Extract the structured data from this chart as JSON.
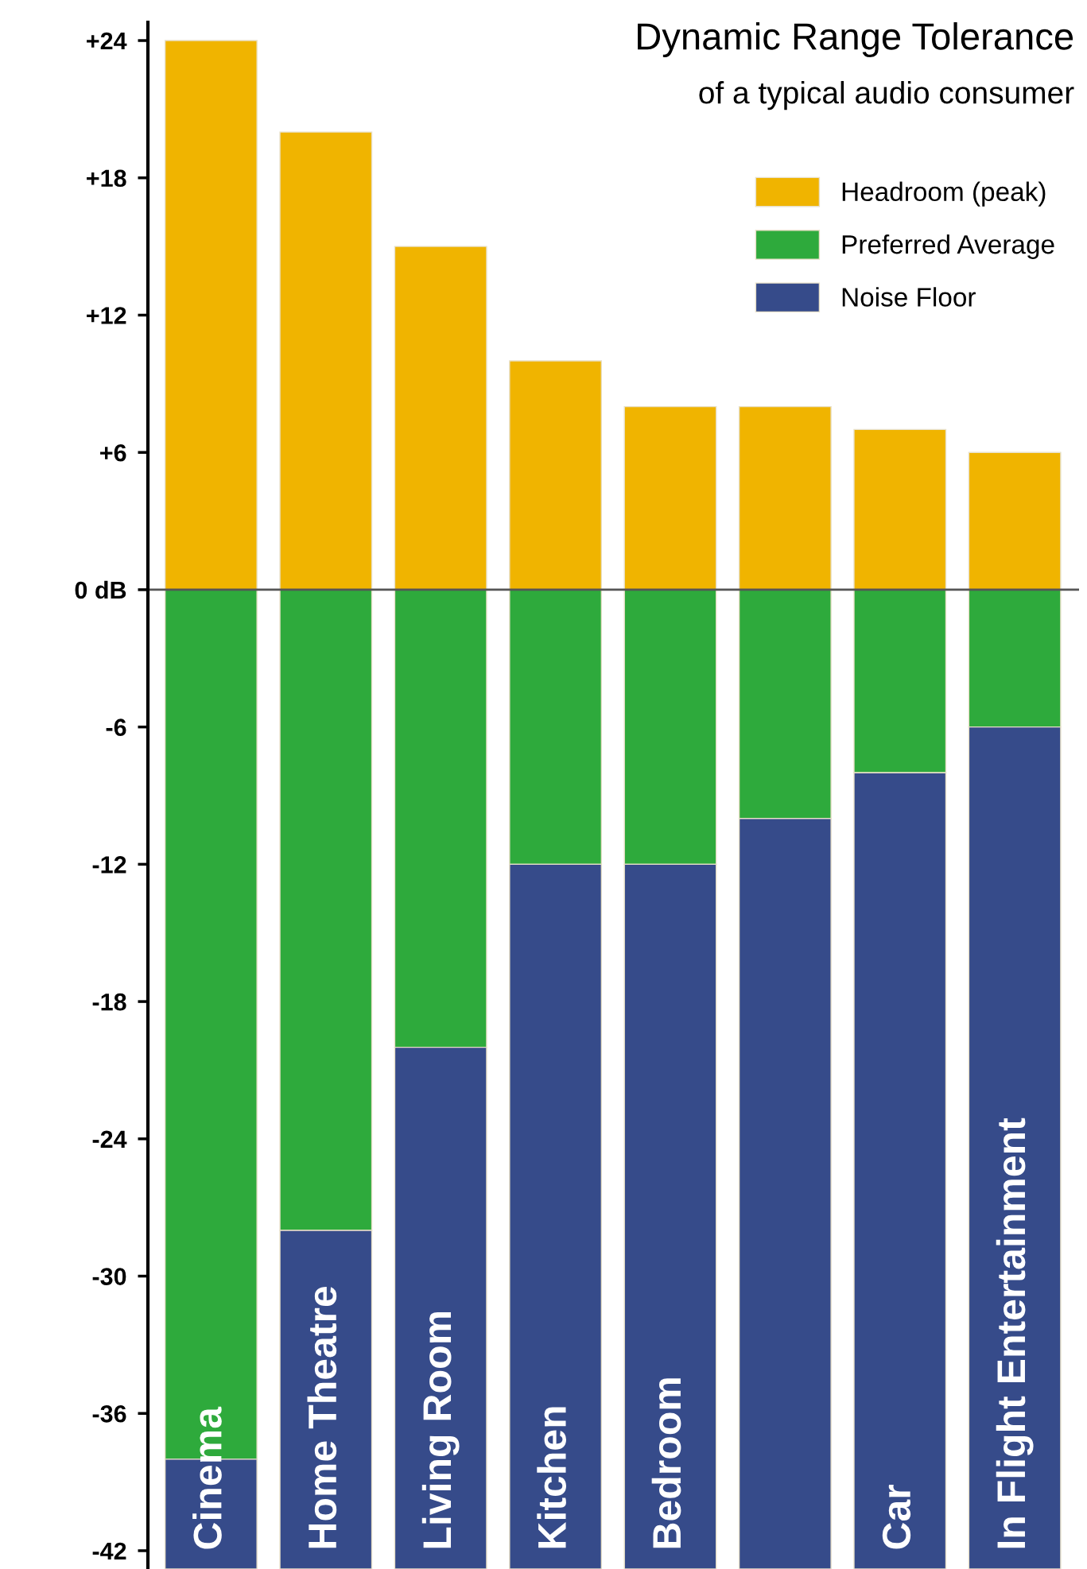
{
  "chart_data": {
    "type": "bar",
    "title": "Dynamic Range Tolerance",
    "subtitle": "of a typical audio consumer",
    "categories": [
      "Cinema",
      "Home Theatre",
      "Living Room",
      "Kitchen",
      "Bedroom",
      null,
      "Car",
      "In Flight Entertainment"
    ],
    "series": [
      {
        "name": "Headroom (peak)",
        "color": "#f0b400",
        "base": [
          0,
          0,
          0,
          0,
          0,
          0,
          0,
          0
        ],
        "values": [
          24,
          20,
          15,
          10,
          8,
          8,
          7,
          6
        ]
      },
      {
        "name": "Preferred Average",
        "color": "#2eaa3c",
        "base": [
          -38,
          -28,
          -20,
          -12,
          -12,
          -10,
          -8,
          -6
        ],
        "values": [
          38,
          28,
          20,
          12,
          12,
          10,
          8,
          6
        ]
      },
      {
        "name": "Noise Floor",
        "color": "#364b8a",
        "base": [
          -42.8,
          -42.8,
          -42.8,
          -42.8,
          -42.8,
          -42.8,
          -42.8,
          -42.8
        ],
        "values": [
          4.8,
          14.8,
          22.8,
          30.8,
          30.8,
          32.8,
          34.8,
          36.8
        ]
      }
    ],
    "ylim": [
      -42.8,
      24.8
    ],
    "yticks": [
      {
        "value": 24,
        "label": "+24"
      },
      {
        "value": 18,
        "label": "+18"
      },
      {
        "value": 12,
        "label": "+12"
      },
      {
        "value": 6,
        "label": "+6"
      },
      {
        "value": 0,
        "label": "0 dB"
      },
      {
        "value": -6,
        "label": "-6"
      },
      {
        "value": -12,
        "label": "-12"
      },
      {
        "value": -18,
        "label": "-18"
      },
      {
        "value": -24,
        "label": "-24"
      },
      {
        "value": -30,
        "label": "-30"
      },
      {
        "value": -36,
        "label": "-36"
      },
      {
        "value": -42,
        "label": "-42"
      }
    ],
    "ref_lines": [
      {
        "axis": "y",
        "value": 0,
        "color": "#555555"
      }
    ],
    "legend": "top right",
    "grid": false,
    "tick_labels": "y"
  }
}
